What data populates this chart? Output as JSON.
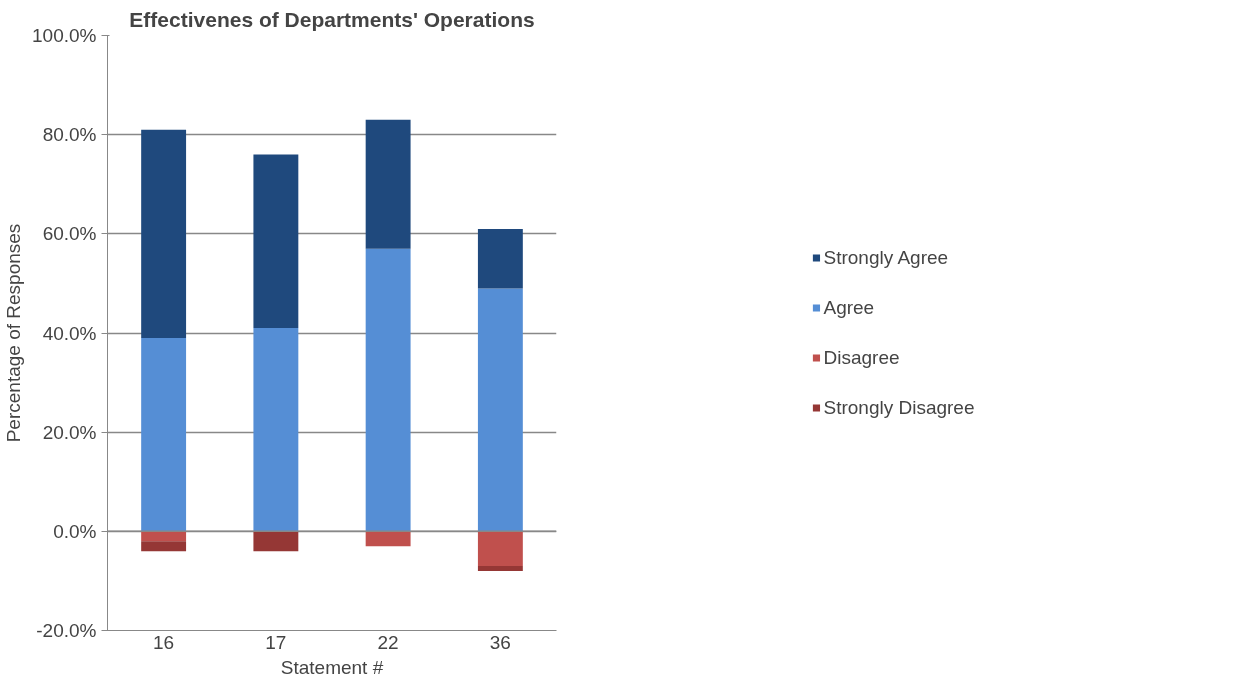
{
  "chart_data": {
    "type": "bar",
    "title": "Effectivenes of Departments' Operations",
    "xlabel": "Statement #",
    "ylabel": "Percentage of Responses",
    "categories": [
      "16",
      "17",
      "22",
      "36"
    ],
    "stacked": true,
    "series": [
      {
        "name": "Agree",
        "color": "#558ed5",
        "values": [
          39,
          41,
          57,
          49
        ]
      },
      {
        "name": "Strongly Agree",
        "color": "#1f497d",
        "values": [
          42,
          35,
          26,
          12
        ]
      },
      {
        "name": "Disagree",
        "color": "#c0504d",
        "values": [
          -2,
          0,
          -3,
          -7
        ]
      },
      {
        "name": "Strongly Disagree",
        "color": "#953735",
        "values": [
          -2,
          -4,
          0,
          -1
        ]
      }
    ],
    "ylim": [
      -20,
      100
    ],
    "yticks": [
      {
        "value": -20,
        "label": "-20.0%"
      },
      {
        "value": 0,
        "label": "0.0%"
      },
      {
        "value": 20,
        "label": "20.0%"
      },
      {
        "value": 40,
        "label": "40.0%"
      },
      {
        "value": 60,
        "label": "60.0%"
      },
      {
        "value": 80,
        "label": "80.0%"
      },
      {
        "value": 100,
        "label": "100.0%"
      }
    ],
    "grid": "y",
    "legend": "right"
  }
}
